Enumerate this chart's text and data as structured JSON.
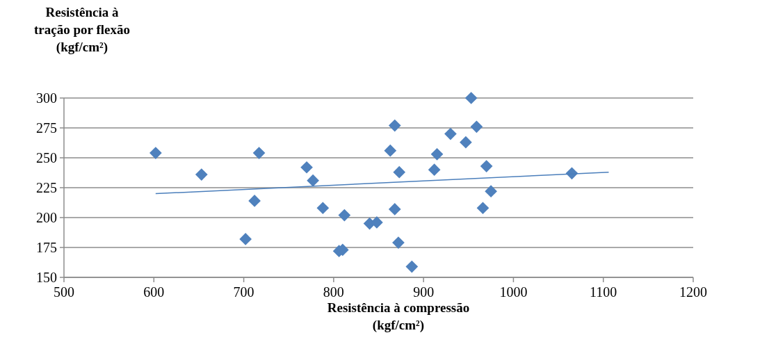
{
  "chart_data": {
    "type": "scatter",
    "xlabel": "Resistência à compressão\n(kgf/cm²)",
    "ylabel": "Resistência à\ntração por flexão\n(kgf/cm²)",
    "x": [
      602,
      653,
      702,
      712,
      717,
      770,
      777,
      788,
      806,
      810,
      812,
      840,
      848,
      863,
      868,
      868,
      872,
      873,
      887,
      912,
      915,
      930,
      947,
      953,
      959,
      966,
      970,
      975,
      1065
    ],
    "series": [
      {
        "color": "#4f81bd",
        "marker": "diamond",
        "values": [
          254,
          236,
          182,
          214,
          254,
          242,
          231,
          208,
          172,
          173,
          202,
          195,
          196,
          256,
          277,
          207,
          179,
          238,
          159,
          240,
          253,
          270,
          263,
          300,
          276,
          208,
          243,
          222,
          237
        ]
      },
      {
        "type": "line",
        "color": "#4a7ebb",
        "x": [
          602,
          1106
        ],
        "values": [
          220,
          238
        ]
      }
    ],
    "xlim": [
      500,
      1200
    ],
    "ylim": [
      150,
      300
    ],
    "xticks": [
      500,
      600,
      700,
      800,
      900,
      1000,
      1100,
      1200
    ],
    "yticks": [
      150,
      175,
      200,
      225,
      250,
      275,
      300
    ],
    "grid": "y"
  }
}
